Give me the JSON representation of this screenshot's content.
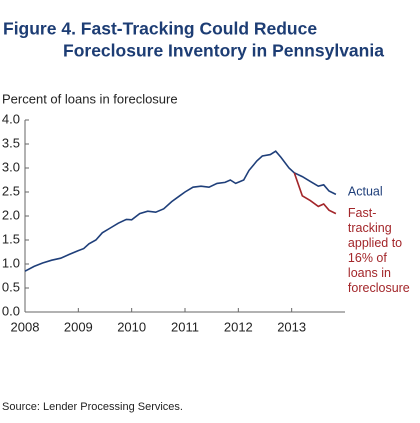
{
  "chart_data": {
    "type": "line",
    "title": [
      "Figure 4. Fast-Tracking Could Reduce",
      "Foreclosure Inventory in Pennsylvania"
    ],
    "y_label": "Percent of loans in foreclosure",
    "source": "Source: Lender Processing Services.",
    "x": [
      2008.0,
      2008.17,
      2008.33,
      2008.5,
      2008.67,
      2008.83,
      2009.0,
      2009.1,
      2009.2,
      2009.33,
      2009.45,
      2009.6,
      2009.75,
      2009.9,
      2010.0,
      2010.15,
      2010.3,
      2010.45,
      2010.6,
      2010.75,
      2010.9,
      2011.0,
      2011.15,
      2011.3,
      2011.45,
      2011.6,
      2011.75,
      2011.85,
      2011.95,
      2012.1,
      2012.2,
      2012.35,
      2012.45,
      2012.6,
      2012.7,
      2012.8,
      2012.95,
      2013.05,
      2013.2,
      2013.35,
      2013.5,
      2013.6,
      2013.7,
      2013.83
    ],
    "series": [
      {
        "name": "Actual",
        "color": "#1f3f7a",
        "values": [
          0.85,
          0.95,
          1.02,
          1.08,
          1.12,
          1.2,
          1.28,
          1.32,
          1.42,
          1.5,
          1.65,
          1.75,
          1.85,
          1.93,
          1.92,
          2.05,
          2.1,
          2.08,
          2.15,
          2.3,
          2.42,
          2.5,
          2.6,
          2.62,
          2.6,
          2.68,
          2.7,
          2.75,
          2.68,
          2.75,
          2.95,
          3.15,
          3.25,
          3.28,
          3.35,
          3.22,
          3.0,
          2.9,
          2.82,
          2.72,
          2.62,
          2.65,
          2.52,
          2.45
        ]
      },
      {
        "name": "Fast-tracking applied to 16% of loans in foreclosure",
        "color": "#a3262a",
        "values": [
          null,
          null,
          null,
          null,
          null,
          null,
          null,
          null,
          null,
          null,
          null,
          null,
          null,
          null,
          null,
          null,
          null,
          null,
          null,
          null,
          null,
          null,
          null,
          null,
          null,
          null,
          null,
          null,
          null,
          null,
          null,
          null,
          null,
          null,
          null,
          null,
          null,
          2.9,
          2.42,
          2.32,
          2.2,
          2.25,
          2.12,
          2.05
        ]
      }
    ],
    "xlim": [
      2008,
      2014
    ],
    "xticks": [
      2008,
      2009,
      2010,
      2011,
      2012,
      2013
    ],
    "ylim": [
      0,
      4
    ],
    "yticks": [
      {
        "value": 0,
        "label": "0.0"
      },
      0.5,
      {
        "value": 1,
        "label": "1.0"
      },
      1.5,
      {
        "value": 2,
        "label": "2.0"
      },
      2.5,
      {
        "value": 3,
        "label": "3.0"
      },
      3.5,
      {
        "value": 4,
        "label": "4.0"
      }
    ]
  }
}
